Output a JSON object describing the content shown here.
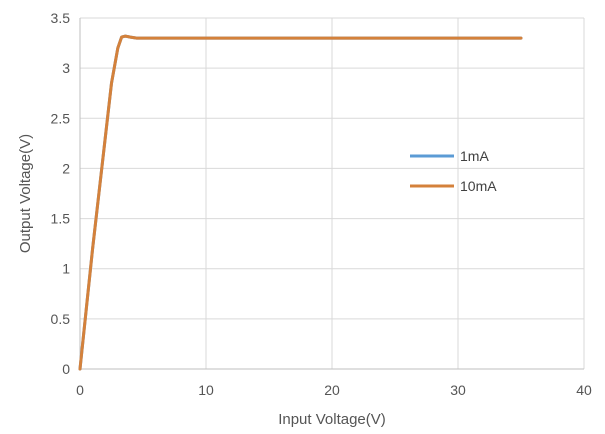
{
  "chart_data": {
    "type": "line",
    "title": "",
    "xlabel": "Input Voltage(V)",
    "ylabel": "Output Voltage(V)",
    "xlim": [
      0,
      40
    ],
    "ylim": [
      0,
      3.5
    ],
    "xticks": [
      0,
      10,
      20,
      30,
      40
    ],
    "yticks": [
      0,
      0.5,
      1,
      1.5,
      2,
      2.5,
      3,
      3.5
    ],
    "xtick_labels": [
      "0",
      "10",
      "20",
      "30",
      "40"
    ],
    "ytick_labels": [
      "0",
      "0.5",
      "1",
      "1.5",
      "2",
      "2.5",
      "3",
      "3.5"
    ],
    "grid": true,
    "legend_position": "right",
    "series": [
      {
        "name": "1mA",
        "color": "#5B9BD5",
        "x": [
          0,
          0.5,
          1,
          1.5,
          2,
          2.5,
          3,
          3.3,
          3.6,
          4,
          4.5,
          5,
          10,
          20,
          30,
          35
        ],
        "y": [
          0,
          0.6,
          1.2,
          1.75,
          2.3,
          2.85,
          3.2,
          3.31,
          3.32,
          3.31,
          3.3,
          3.3,
          3.3,
          3.3,
          3.3,
          3.3
        ]
      },
      {
        "name": "10mA",
        "color": "#D4813B",
        "x": [
          0,
          0.5,
          1,
          1.5,
          2,
          2.5,
          3,
          3.3,
          3.6,
          4,
          4.5,
          5,
          10,
          20,
          30,
          35
        ],
        "y": [
          0,
          0.6,
          1.2,
          1.75,
          2.3,
          2.85,
          3.2,
          3.31,
          3.32,
          3.31,
          3.3,
          3.3,
          3.3,
          3.3,
          3.3,
          3.3
        ]
      }
    ]
  }
}
